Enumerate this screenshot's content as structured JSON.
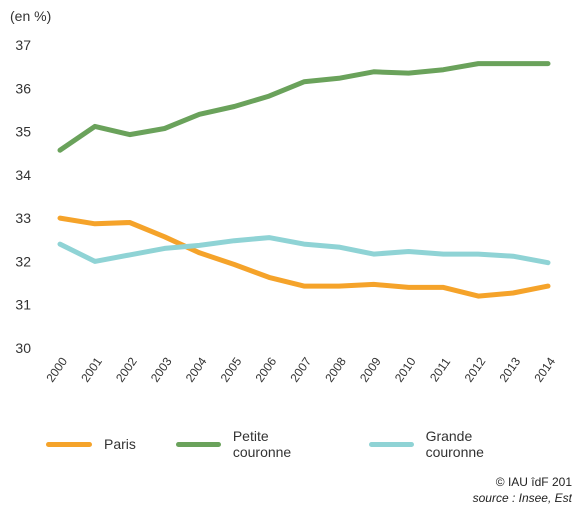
{
  "chart_data": {
    "type": "line",
    "unit_label": "(en %)",
    "x": [
      "2000",
      "2001",
      "2002",
      "2003",
      "2004",
      "2005",
      "2006",
      "2007",
      "2008",
      "2009",
      "2010",
      "2011",
      "2012",
      "2013",
      "2014"
    ],
    "y_ticks": [
      "30",
      "31",
      "32",
      "33",
      "34",
      "35",
      "36",
      "37"
    ],
    "ylim": [
      30,
      37
    ],
    "grid": false,
    "legend_position": "bottom",
    "series": [
      {
        "name": "Paris",
        "color": "#f5a32a",
        "values": [
          33.0,
          32.87,
          32.9,
          32.57,
          32.2,
          31.93,
          31.63,
          31.43,
          31.43,
          31.47,
          31.4,
          31.4,
          31.2,
          31.27,
          31.43
        ]
      },
      {
        "name": "Petite couronne",
        "color": "#6aa25b",
        "values": [
          34.57,
          35.12,
          34.93,
          35.07,
          35.4,
          35.58,
          35.82,
          36.15,
          36.23,
          36.38,
          36.35,
          36.43,
          36.57,
          36.57,
          36.57
        ]
      },
      {
        "name": "Grande couronne",
        "color": "#8fd3d5",
        "values": [
          32.4,
          32.0,
          32.15,
          32.3,
          32.37,
          32.48,
          32.55,
          32.4,
          32.33,
          32.17,
          32.23,
          32.17,
          32.17,
          32.12,
          31.97
        ]
      }
    ]
  },
  "footer": {
    "credit": "© IAU îdF 201",
    "source": "source : Insee, Est"
  }
}
